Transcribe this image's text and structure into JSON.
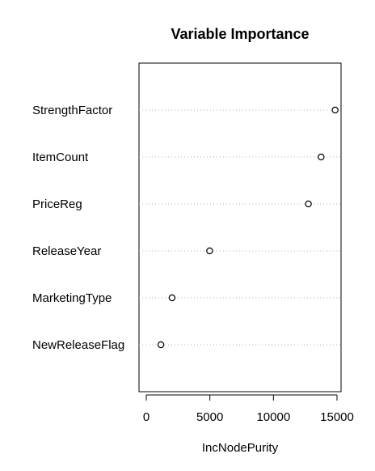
{
  "chart_data": {
    "type": "scatter",
    "title": "Variable Importance",
    "xlabel": "IncNodePurity",
    "ylabel": "",
    "categories": [
      "StrengthFactor",
      "ItemCount",
      "PriceReg",
      "ReleaseYear",
      "MarketingType",
      "NewReleaseFlag"
    ],
    "values": [
      14850,
      13750,
      12750,
      4980,
      2030,
      1150
    ],
    "xlim": [
      0,
      15000
    ],
    "xticks": [
      0,
      5000,
      10000,
      15000
    ],
    "xtick_labels": [
      "0",
      "5000",
      "10000",
      "15000"
    ],
    "grid": "dotted horizontal guide per variable",
    "marker": "open circle"
  }
}
